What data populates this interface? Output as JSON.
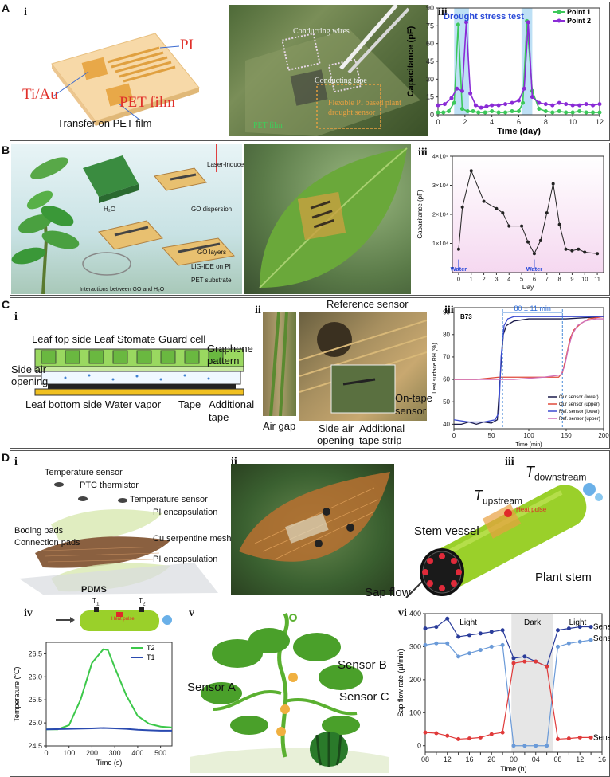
{
  "panels": {
    "A": {
      "letter": "A",
      "i": {
        "label": "i",
        "pi": "PI",
        "tiau": "Ti/Au",
        "pet": "PET film",
        "caption": "Transfer on PET film"
      },
      "ii": {
        "label": "ii",
        "wires": "Conducting wires",
        "tape": "Conducting tape",
        "sensor": "Flexible PI based plant drought sensor",
        "petfilm": "PET film"
      },
      "iii": {
        "label": "iii"
      }
    },
    "B": {
      "letter": "B",
      "i": {
        "label": "i",
        "laser": "Laser-induced",
        "h2o": "H₂O",
        "go_disp": "GO dispersion",
        "go_layers": "GO layers",
        "lig": "LIG-IDE on PI",
        "pet": "PET substrate",
        "interact": "Interactions between GO and H₂O"
      },
      "ii": {
        "label": "ii"
      },
      "iii": {
        "label": "iii"
      }
    },
    "C": {
      "letter": "C",
      "i": {
        "label": "i",
        "top_labels": "Leaf top side Leaf Stomate Guard cell",
        "graphene": "Graphene",
        "pattern": "pattern",
        "side": "Side air",
        "opening": "opening",
        "bottom_labels": "Leaf bottom side Water vapor",
        "tape": "Tape",
        "additional": "Additional",
        "tape2": "tape"
      },
      "ii": {
        "label": "ii",
        "ref": "Reference sensor",
        "airgap": "Air gap",
        "sideair": "Side air",
        "opening": "opening",
        "addtape": "Additional",
        "addtape2": "tape strip",
        "ontape": "On-tape",
        "ontape2": "sensor"
      },
      "iii": {
        "label": "iii"
      }
    },
    "D": {
      "letter": "D",
      "i": {
        "label": "i",
        "temp1": "Temperature sensor",
        "ptc": "PTC thermistor",
        "temp2": "Temperature sensor",
        "pi1": "PI encapsulation",
        "boding": "Boding pads",
        "conn": "Connection pads",
        "cu": "Cu serpentine mesh",
        "pi2": "PI encapsulation",
        "pdms": "PDMS"
      },
      "ii": {
        "label": "ii"
      },
      "iii": {
        "label": "iii",
        "tup": "T",
        "tup_sub": "upstream",
        "tdown": "T",
        "tdown_sub": "downstream",
        "vessel": "Stem vessel",
        "heat": "Heat pulse",
        "stem": "Plant stem",
        "sap": "Sap flow"
      },
      "iv": {
        "label": "iv",
        "t1": "T",
        "t1sub": "1",
        "t2": "T",
        "t2sub": "2",
        "heat": "Heat pulse"
      },
      "v": {
        "label": "v",
        "sa": "Sensor A",
        "sb": "Sensor B",
        "sc": "Sensor C"
      },
      "vi": {
        "label": "vi"
      }
    }
  },
  "chart_data": [
    {
      "id": "A-iii",
      "type": "line",
      "xlabel": "Time (day)",
      "ylabel": "Capacitance (pF)",
      "xlim": [
        0,
        12
      ],
      "ylim": [
        0,
        90
      ],
      "xticks": [
        0,
        2,
        4,
        6,
        8,
        10,
        12
      ],
      "yticks": [
        0,
        15,
        30,
        45,
        60,
        75,
        90
      ],
      "annotation": "Drought stress test",
      "shaded": [
        [
          1.2,
          2.3
        ],
        [
          6.2,
          7.0
        ]
      ],
      "legend_position": "top-right",
      "series": [
        {
          "name": "Point 1",
          "color": "#3cc85a",
          "x": [
            0,
            0.4,
            0.8,
            1.2,
            1.5,
            1.8,
            2.2,
            2.6,
            3.0,
            3.5,
            4.0,
            4.5,
            5.0,
            5.5,
            6.0,
            6.3,
            6.6,
            7.0,
            7.5,
            8.0,
            8.5,
            9.0,
            9.5,
            10.0,
            10.5,
            11.0,
            11.5,
            12.0
          ],
          "y": [
            2,
            2,
            3,
            10,
            76,
            5,
            3,
            3,
            2,
            2,
            3,
            2,
            2,
            3,
            3,
            10,
            79,
            20,
            5,
            3,
            2,
            3,
            2,
            2,
            3,
            2,
            2,
            2
          ]
        },
        {
          "name": "Point 2",
          "color": "#8a2bd6",
          "x": [
            0,
            0.5,
            1.0,
            1.4,
            1.8,
            2.1,
            2.4,
            2.8,
            3.2,
            3.6,
            4.0,
            4.5,
            5.0,
            5.5,
            6.0,
            6.4,
            6.7,
            7.0,
            7.5,
            8.0,
            8.5,
            9.0,
            9.5,
            10.0,
            10.5,
            11.0,
            11.5,
            12.0
          ],
          "y": [
            8,
            9,
            14,
            22,
            20,
            78,
            18,
            8,
            6,
            7,
            8,
            8,
            9,
            10,
            12,
            22,
            78,
            15,
            10,
            9,
            8,
            10,
            9,
            8,
            8,
            9,
            8,
            9
          ]
        }
      ]
    },
    {
      "id": "B-iii",
      "type": "line",
      "xlabel": "Day",
      "ylabel": "Capacitance (pF)",
      "xlim": [
        -0.5,
        11.5
      ],
      "ylim": [
        0,
        40000
      ],
      "xticks": [
        0,
        1,
        2,
        3,
        4,
        5,
        6,
        7,
        8,
        9,
        10,
        11
      ],
      "yticks": [
        10000,
        20000,
        30000,
        40000
      ],
      "ytick_labels": [
        "1×10⁴",
        "2×10⁴",
        "3×10⁴",
        "4×10⁴"
      ],
      "annotations": [
        {
          "x": 0,
          "text": "Water"
        },
        {
          "x": 6,
          "text": "Water"
        }
      ],
      "series": [
        {
          "name": "",
          "color": "#222",
          "x": [
            0,
            0.3,
            1,
            2,
            3,
            3.5,
            4,
            5,
            5.5,
            6,
            6.5,
            7,
            7.5,
            8,
            8.5,
            9,
            9.5,
            10,
            11
          ],
          "y": [
            8000,
            22500,
            35000,
            24500,
            22000,
            20500,
            16000,
            16000,
            10500,
            6500,
            11000,
            20500,
            30500,
            16500,
            8000,
            7500,
            8000,
            7000,
            6500
          ]
        }
      ]
    },
    {
      "id": "C-iii",
      "type": "line",
      "xlabel": "Time (min)",
      "ylabel": "Leaf surface RH (%)",
      "xlim": [
        0,
        200
      ],
      "ylim": [
        38,
        92
      ],
      "xticks": [
        0,
        50,
        100,
        150,
        200
      ],
      "yticks": [
        40,
        50,
        60,
        70,
        80,
        90
      ],
      "tag": "B73",
      "span_text": "80 ± 11 min",
      "span": [
        65,
        145
      ],
      "series": [
        {
          "name": "Our sensor (lower)",
          "color": "#1a1a4a",
          "x": [
            0,
            10,
            20,
            30,
            40,
            50,
            58,
            62,
            66,
            70,
            80,
            100,
            120,
            150,
            200
          ],
          "y": [
            40,
            40,
            41,
            40,
            41,
            40.5,
            42,
            62,
            80,
            84,
            86,
            87,
            87,
            87,
            88
          ]
        },
        {
          "name": "Our sensor (upper)",
          "color": "#e04a3a",
          "x": [
            0,
            30,
            60,
            100,
            140,
            145,
            150,
            155,
            160,
            170,
            180,
            200
          ],
          "y": [
            60,
            60,
            61,
            61,
            61,
            63,
            70,
            78,
            82,
            85,
            87,
            88
          ]
        },
        {
          "name": "Ref. sensor (lower)",
          "color": "#3a4ad0",
          "x": [
            0,
            20,
            40,
            55,
            60,
            63,
            67,
            72,
            80,
            100,
            150,
            200
          ],
          "y": [
            42,
            41,
            41,
            42,
            45,
            70,
            84,
            87,
            88,
            88,
            88,
            88
          ]
        },
        {
          "name": "Ref. sensor (upper)",
          "color": "#d070b8",
          "x": [
            0,
            40,
            80,
            120,
            143,
            148,
            153,
            158,
            165,
            175,
            190,
            200
          ],
          "y": [
            60,
            60,
            60,
            61,
            62,
            66,
            74,
            80,
            84,
            86,
            87,
            87
          ]
        }
      ]
    },
    {
      "id": "D-iv",
      "type": "line",
      "xlabel": "Time (s)",
      "ylabel": "Temperature (°C)",
      "xlim": [
        0,
        550
      ],
      "ylim": [
        24.5,
        26.75
      ],
      "xticks": [
        0,
        100,
        200,
        300,
        400,
        500
      ],
      "yticks": [
        24.5,
        25.0,
        25.5,
        26.0,
        26.5
      ],
      "legend_position": "top-right",
      "series": [
        {
          "name": "T2",
          "color": "#3cc84a",
          "x": [
            0,
            50,
            100,
            150,
            200,
            250,
            270,
            300,
            350,
            400,
            450,
            500,
            550
          ],
          "y": [
            24.86,
            24.86,
            24.95,
            25.5,
            26.3,
            26.6,
            26.58,
            26.2,
            25.6,
            25.15,
            24.98,
            24.92,
            24.9
          ]
        },
        {
          "name": "T1",
          "color": "#2a4ab0",
          "x": [
            0,
            100,
            200,
            250,
            300,
            350,
            400,
            450,
            500,
            550
          ],
          "y": [
            24.86,
            24.87,
            24.88,
            24.89,
            24.88,
            24.87,
            24.85,
            24.84,
            24.83,
            24.83
          ]
        }
      ]
    },
    {
      "id": "D-vi",
      "type": "line",
      "xlabel": "Time (h)",
      "ylabel": "Sap flow rate (µl/min)",
      "xlim": [
        0,
        16
      ],
      "ylim": [
        -20,
        400
      ],
      "xticks": [
        0,
        1,
        2,
        3,
        4,
        5,
        6,
        7,
        8,
        9,
        10,
        11,
        12,
        13,
        14,
        15,
        16
      ],
      "xtick_labels": [
        "08",
        "",
        "12",
        "",
        "16",
        "",
        "20",
        "",
        "00",
        "",
        "04",
        "",
        "08",
        "",
        "12",
        "",
        "16"
      ],
      "yticks": [
        0,
        100,
        200,
        300,
        400
      ],
      "regions": [
        {
          "from": 0,
          "to": 7.8,
          "text": "Light"
        },
        {
          "from": 7.8,
          "to": 11.6,
          "text": "Dark"
        },
        {
          "from": 11.6,
          "to": 16,
          "text": "Light"
        }
      ],
      "series": [
        {
          "name": "Sensor A",
          "color": "#2a3c9a",
          "x": [
            0,
            1,
            2,
            3,
            4,
            5,
            6,
            7,
            8,
            9,
            10,
            11,
            12,
            13,
            14,
            15
          ],
          "y": [
            355,
            360,
            385,
            330,
            335,
            340,
            345,
            350,
            265,
            270,
            255,
            240,
            350,
            355,
            360,
            360
          ]
        },
        {
          "name": "Sensor B",
          "color": "#6a9ad8",
          "x": [
            0,
            1,
            2,
            3,
            4,
            5,
            6,
            7,
            8,
            9,
            10,
            11,
            12,
            13,
            14,
            15
          ],
          "y": [
            305,
            310,
            310,
            270,
            280,
            290,
            300,
            305,
            0,
            0,
            0,
            0,
            300,
            310,
            315,
            320
          ]
        },
        {
          "name": "Sensor C",
          "color": "#e03a3a",
          "x": [
            0,
            1,
            2,
            3,
            4,
            5,
            6,
            7,
            8,
            9,
            10,
            11,
            12,
            13,
            14,
            15
          ],
          "y": [
            40,
            38,
            30,
            20,
            22,
            25,
            35,
            40,
            250,
            255,
            255,
            240,
            20,
            22,
            25,
            25
          ]
        }
      ]
    }
  ]
}
